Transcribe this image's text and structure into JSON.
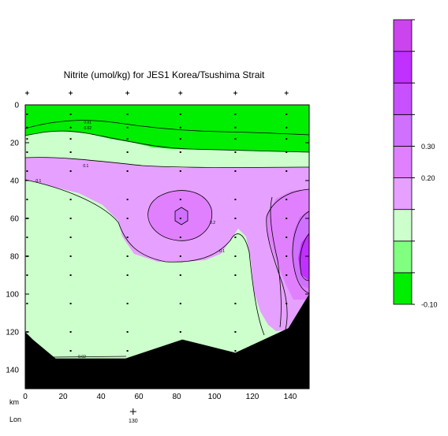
{
  "chart_data": {
    "type": "contour",
    "title": "Nitrite (umol/kg) for JES1 Korea/Tsushima Strait",
    "xlabel": "km",
    "ylabel": "",
    "xlim": [
      0,
      150
    ],
    "ylim": [
      150,
      0
    ],
    "x_ticks": [
      0,
      20,
      40,
      60,
      80,
      100,
      120,
      140
    ],
    "y_ticks": [
      0,
      20,
      40,
      60,
      80,
      100,
      120,
      140
    ],
    "lon_axis_label": "Lon",
    "lon_ticks": [
      {
        "km": 57,
        "label": "130"
      }
    ],
    "station_km": [
      1,
      24,
      54,
      82,
      111,
      138
    ],
    "contour_labels": [
      {
        "text": "0.01",
        "x": 33,
        "y": 9
      },
      {
        "text": "0.02",
        "x": 33,
        "y": 12
      },
      {
        "text": "0.1",
        "x": 32,
        "y": 32
      },
      {
        "text": "0.1",
        "x": 7,
        "y": 40
      },
      {
        "text": "0.2",
        "x": 99,
        "y": 62
      },
      {
        "text": "0.1",
        "x": 104,
        "y": 77
      },
      {
        "text": "0.02",
        "x": 30,
        "y": 133
      }
    ],
    "colorbar": {
      "bands": [
        "#00ee00",
        "#80ff80",
        "#ccffcc",
        "#e6a0ff",
        "#e080ff",
        "#d070ff",
        "#c850ff",
        "#c030ff",
        "#cc44ee"
      ],
      "tick_labels": [
        {
          "label": "-0.10",
          "band_edge": 0
        },
        {
          "label": "0.20",
          "band_edge": 4
        },
        {
          "label": "0.30",
          "band_edge": 5
        }
      ]
    },
    "bathymetry_km_depth": [
      [
        0,
        120
      ],
      [
        4,
        124
      ],
      [
        16,
        134
      ],
      [
        53,
        134
      ],
      [
        83,
        124
      ],
      [
        111,
        131
      ],
      [
        139,
        118
      ],
      [
        150,
        100
      ]
    ]
  }
}
